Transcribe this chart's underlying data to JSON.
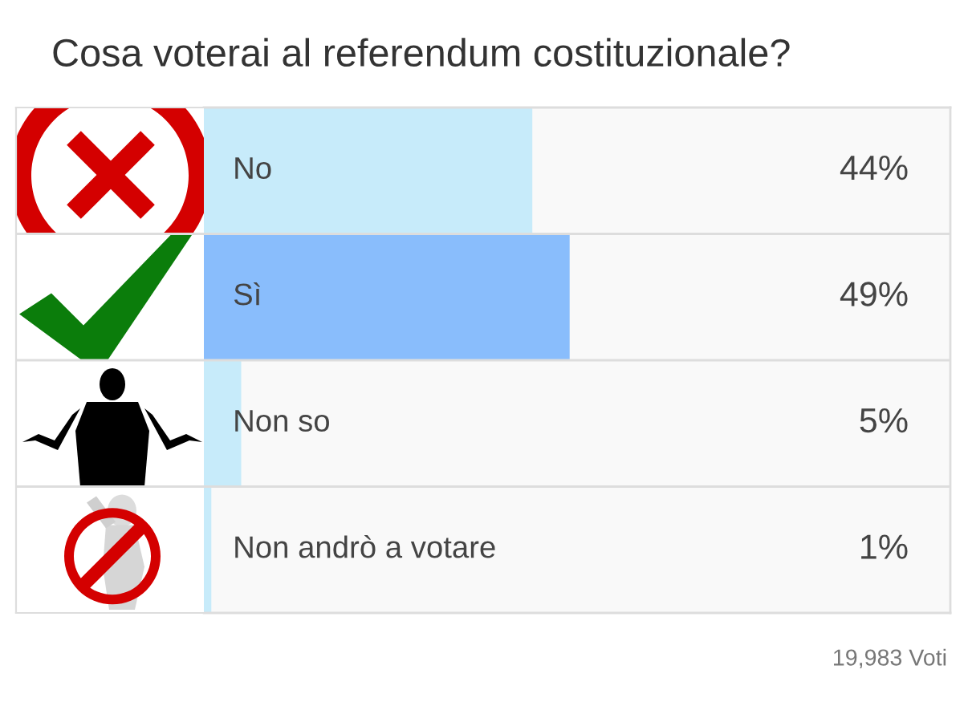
{
  "chart_data": {
    "type": "bar",
    "orientation": "horizontal",
    "title": "Cosa voterai al referendum costituzionale?",
    "categories": [
      "No",
      "Sì",
      "Non so",
      "Non andrò a votare"
    ],
    "values": [
      44,
      49,
      5,
      1
    ],
    "colors": [
      "#c7ebfa",
      "#89bdfc",
      "#c7ebfa",
      "#c7ebfa"
    ],
    "value_labels": [
      "44%",
      "49%",
      "5%",
      "1%"
    ],
    "xlim": [
      0,
      100
    ],
    "tick_labels": false,
    "annotations": [
      "19,983 Voti"
    ]
  }
}
